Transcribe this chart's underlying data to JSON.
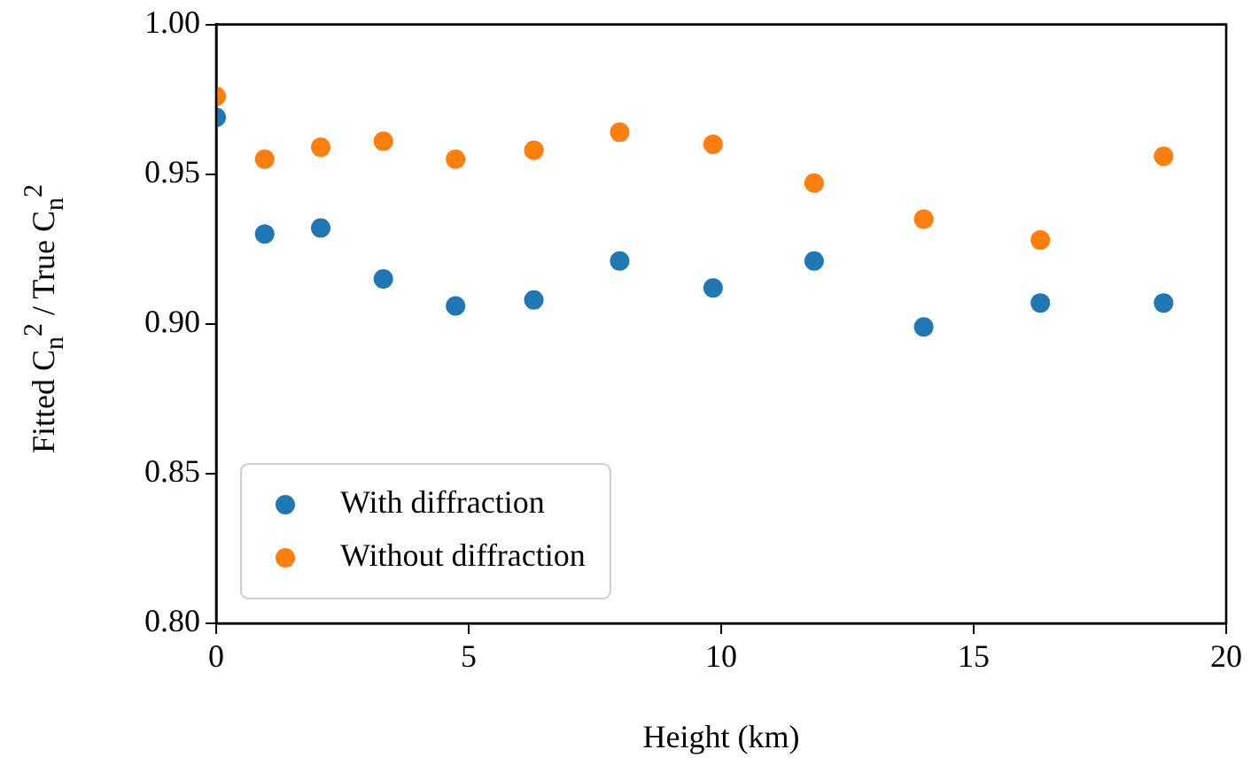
{
  "chart_data": {
    "type": "scatter",
    "xlabel": "Height (km)",
    "ylabel": "Fitted C$_{n}$$^{2}$ / True C$_{n}$$^{2}$",
    "series": [
      {
        "name": "With diffraction",
        "color": "#1f77b4",
        "x": [
          0,
          0.96,
          2.07,
          3.31,
          4.74,
          6.29,
          7.99,
          9.84,
          11.84,
          14.01,
          16.32,
          18.76
        ],
        "values": [
          0.969,
          0.93,
          0.932,
          0.915,
          0.906,
          0.908,
          0.921,
          0.912,
          0.921,
          0.899,
          0.907,
          0.907
        ]
      },
      {
        "name": "Without diffraction",
        "color": "#ff7f0e",
        "x": [
          0,
          0.96,
          2.07,
          3.31,
          4.74,
          6.29,
          7.99,
          9.84,
          11.84,
          14.01,
          16.32,
          18.76
        ],
        "values": [
          0.976,
          0.955,
          0.959,
          0.961,
          0.955,
          0.958,
          0.964,
          0.96,
          0.947,
          0.935,
          0.928,
          0.956
        ]
      }
    ],
    "xlim": [
      0,
      20
    ],
    "xticks": [
      0,
      5,
      10,
      15,
      20
    ],
    "ylim": [
      0.8,
      1.0
    ],
    "yticks": [
      {
        "value": 0.8,
        "label": "0.80"
      },
      {
        "value": 0.85,
        "label": "0.85"
      },
      {
        "value": 0.9,
        "label": "0.90"
      },
      {
        "value": 0.95,
        "label": "0.95"
      },
      {
        "value": 1.0,
        "label": "1.00"
      }
    ],
    "grid": false,
    "legend": "bottom left",
    "marker": "circle"
  }
}
